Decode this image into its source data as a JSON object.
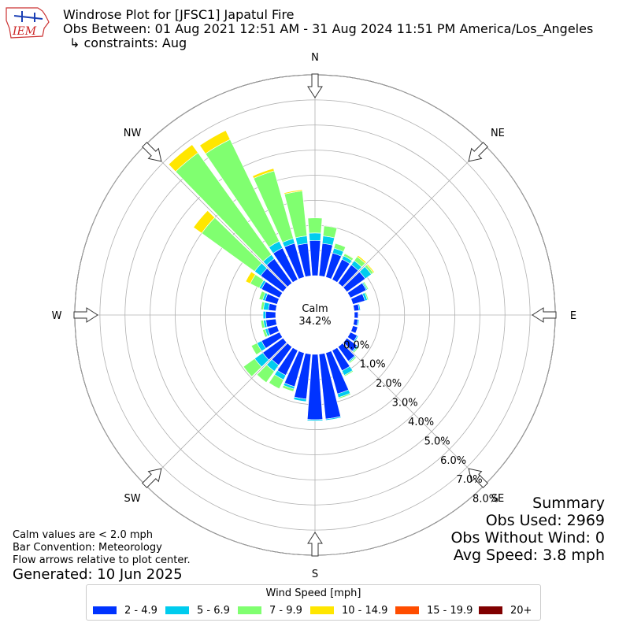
{
  "logo": {
    "text": "IEM"
  },
  "header": {
    "title": "Windrose Plot for [JFSC1] Japatul Fire",
    "obs_between": "Obs Between: 01 Aug 2021 12:51 AM - 31 Aug 2024 11:51 PM America/Los_Angeles",
    "constraints": "↳ constraints: Aug"
  },
  "summary": {
    "heading": "Summary",
    "obs_used": "Obs Used: 2969",
    "obs_without_wind": "Obs Without Wind: 0",
    "avg_speed": "Avg Speed: 3.8 mph"
  },
  "notes": {
    "calm_def": "Calm values are < 2.0 mph",
    "convention": "Bar Convention: Meteorology",
    "flow": "Flow arrows relative to plot center.",
    "generated": "Generated: 10 Jun 2025"
  },
  "legend": {
    "title": "Wind Speed [mph]",
    "items": [
      {
        "label": "2 - 4.9",
        "color": "#0033ff"
      },
      {
        "label": "5 - 6.9",
        "color": "#00ccee"
      },
      {
        "label": "7 - 9.9",
        "color": "#80ff70"
      },
      {
        "label": "10 - 14.9",
        "color": "#ffe600"
      },
      {
        "label": "15 - 19.9",
        "color": "#ff4d00"
      },
      {
        "label": "20+",
        "color": "#800000"
      }
    ]
  },
  "chart_data": {
    "type": "windrose",
    "calm_label": "Calm",
    "calm_value": "34.2%",
    "radial_max": 8.0,
    "radial_ticks": [
      "0.0%",
      "1.0%",
      "2.0%",
      "3.0%",
      "4.0%",
      "5.0%",
      "6.0%",
      "7.0%",
      "8.0%"
    ],
    "compass_labels": [
      "N",
      "NE",
      "E",
      "SE",
      "S",
      "SW",
      "W",
      "NW"
    ],
    "speed_bins": [
      "2 - 4.9",
      "5 - 6.9",
      "7 - 9.9",
      "10 - 14.9",
      "15 - 19.9",
      "20+"
    ],
    "directions": [
      0,
      10,
      20,
      30,
      40,
      50,
      60,
      70,
      80,
      90,
      100,
      110,
      120,
      130,
      140,
      150,
      160,
      170,
      180,
      190,
      200,
      210,
      220,
      230,
      240,
      250,
      260,
      270,
      280,
      290,
      300,
      310,
      320,
      330,
      340,
      350
    ],
    "cumulative": [
      [
        1.4,
        1.7,
        2.3,
        2.3,
        2.3,
        2.3
      ],
      [
        1.3,
        1.6,
        2.0,
        2.0,
        2.0,
        2.0
      ],
      [
        1.0,
        1.2,
        1.4,
        1.42,
        1.42,
        1.42
      ],
      [
        0.9,
        1.05,
        1.15,
        1.17,
        1.17,
        1.17
      ],
      [
        0.9,
        1.1,
        1.3,
        1.36,
        1.36,
        1.36
      ],
      [
        0.9,
        1.2,
        1.3,
        1.35,
        1.35,
        1.35
      ],
      [
        0.7,
        0.75,
        0.8,
        0.8,
        0.8,
        0.8
      ],
      [
        0.5,
        0.6,
        0.65,
        0.65,
        0.65,
        0.65
      ],
      [
        0.2,
        0.25,
        0.25,
        0.25,
        0.25,
        0.25
      ],
      [
        0.15,
        0.15,
        0.15,
        0.15,
        0.15,
        0.15
      ],
      [
        0.15,
        0.2,
        0.2,
        0.2,
        0.2,
        0.2
      ],
      [
        0.2,
        0.2,
        0.2,
        0.2,
        0.2,
        0.2
      ],
      [
        0.3,
        0.35,
        0.35,
        0.35,
        0.35,
        0.35
      ],
      [
        0.5,
        0.55,
        0.6,
        0.6,
        0.6,
        0.6
      ],
      [
        0.7,
        0.75,
        0.8,
        0.8,
        0.8,
        0.8
      ],
      [
        0.9,
        1.1,
        1.15,
        1.15,
        1.15,
        1.15
      ],
      [
        1.7,
        1.85,
        1.9,
        1.9,
        1.9,
        1.9
      ],
      [
        2.6,
        2.65,
        2.65,
        2.65,
        2.65,
        2.65
      ],
      [
        2.6,
        2.65,
        2.65,
        2.65,
        2.65,
        2.65
      ],
      [
        1.8,
        1.9,
        1.9,
        1.9,
        1.9,
        1.9
      ],
      [
        1.4,
        1.5,
        1.6,
        1.6,
        1.6,
        1.6
      ],
      [
        1.1,
        1.3,
        1.7,
        1.7,
        1.7,
        1.7
      ],
      [
        0.9,
        1.2,
        1.75,
        1.75,
        1.75,
        1.75
      ],
      [
        1.0,
        1.4,
        1.95,
        1.95,
        1.95,
        1.95
      ],
      [
        0.8,
        1.0,
        1.25,
        1.25,
        1.25,
        1.25
      ],
      [
        0.4,
        0.5,
        0.6,
        0.6,
        0.6,
        0.6
      ],
      [
        0.4,
        0.5,
        0.6,
        0.6,
        0.6,
        0.6
      ],
      [
        0.4,
        0.5,
        0.5,
        0.5,
        0.5,
        0.5
      ],
      [
        0.3,
        0.5,
        0.6,
        0.6,
        0.6,
        0.6
      ],
      [
        0.5,
        0.6,
        0.75,
        0.75,
        0.75,
        0.75
      ],
      [
        0.8,
        0.9,
        1.3,
        1.5,
        1.5,
        1.5
      ],
      [
        1.1,
        1.4,
        4.0,
        4.4,
        4.4,
        4.4
      ],
      [
        1.2,
        1.4,
        6.4,
        6.8,
        6.8,
        6.8
      ],
      [
        1.4,
        1.7,
        6.2,
        6.6,
        6.6,
        6.6
      ],
      [
        1.4,
        1.6,
        4.4,
        4.5,
        4.5,
        4.5
      ],
      [
        1.3,
        1.6,
        3.4,
        3.45,
        3.45,
        3.45
      ]
    ]
  }
}
